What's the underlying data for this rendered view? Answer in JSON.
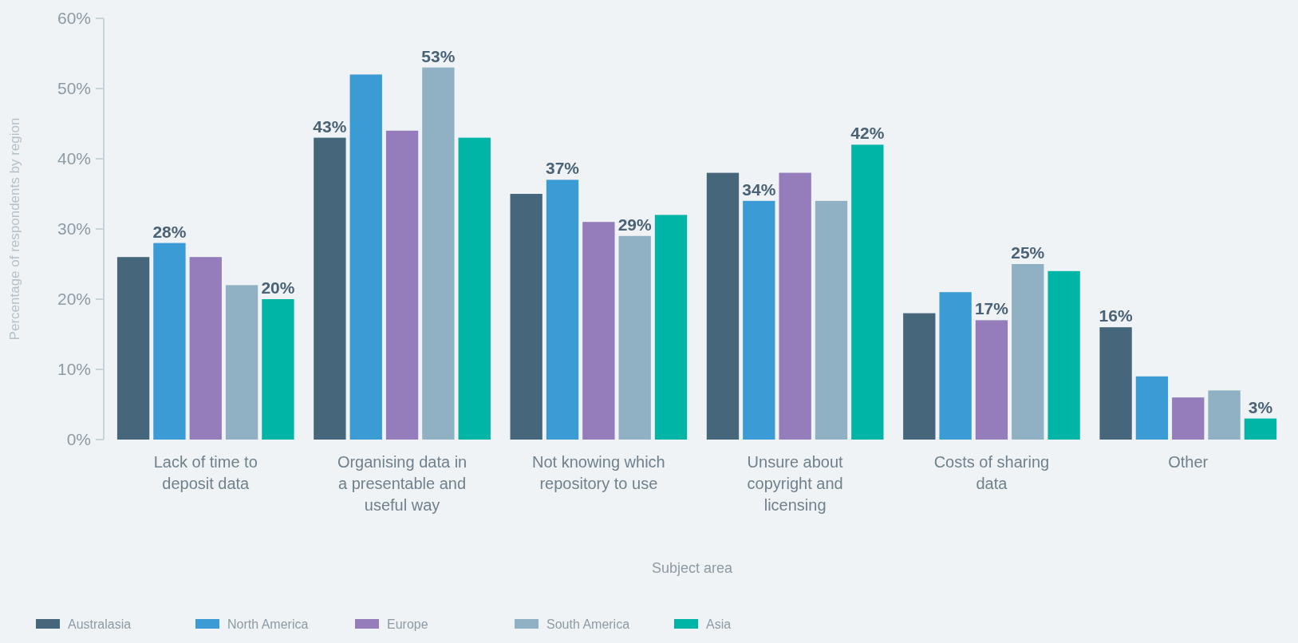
{
  "chart_data": {
    "type": "bar",
    "xlabel": "Subject area",
    "ylabel": "Percentage of respondents by region",
    "categories": [
      "Lack of time to deposit data",
      "Organising data in a presentable and useful way",
      "Not knowing which repository to use",
      "Unsure about copyright and licensing",
      "Costs of sharing data",
      "Other"
    ],
    "series": [
      {
        "name": "Australasia",
        "color": "#46677b",
        "values": [
          26,
          43,
          35,
          38,
          18,
          16
        ],
        "value_labels": [
          null,
          "43%",
          null,
          null,
          null,
          "16%"
        ]
      },
      {
        "name": "North America",
        "color": "#3a9bd5",
        "values": [
          28,
          52,
          37,
          34,
          21,
          9
        ],
        "value_labels": [
          "28%",
          null,
          "37%",
          "34%",
          null,
          null
        ]
      },
      {
        "name": "Europe",
        "color": "#957cba",
        "values": [
          26,
          44,
          31,
          38,
          17,
          6
        ],
        "value_labels": [
          null,
          null,
          null,
          null,
          "17%",
          null
        ]
      },
      {
        "name": "South America",
        "color": "#8fb1c3",
        "values": [
          22,
          53,
          29,
          34,
          25,
          7
        ],
        "value_labels": [
          null,
          "53%",
          "29%",
          null,
          "25%",
          null
        ]
      },
      {
        "name": "Asia",
        "color": "#00b5a5",
        "values": [
          20,
          43,
          32,
          42,
          24,
          3
        ],
        "value_labels": [
          "20%",
          null,
          null,
          "42%",
          null,
          "3%"
        ]
      }
    ],
    "ylim": [
      0,
      60
    ],
    "yticks": [
      {
        "value": 0,
        "label": "0%"
      },
      {
        "value": 10,
        "label": "10%"
      },
      {
        "value": 20,
        "label": "20%"
      },
      {
        "value": 30,
        "label": "30%"
      },
      {
        "value": 40,
        "label": "40%"
      },
      {
        "value": 50,
        "label": "50%"
      },
      {
        "value": 60,
        "label": "60%"
      }
    ],
    "grid": false,
    "legend": "bottom left"
  }
}
